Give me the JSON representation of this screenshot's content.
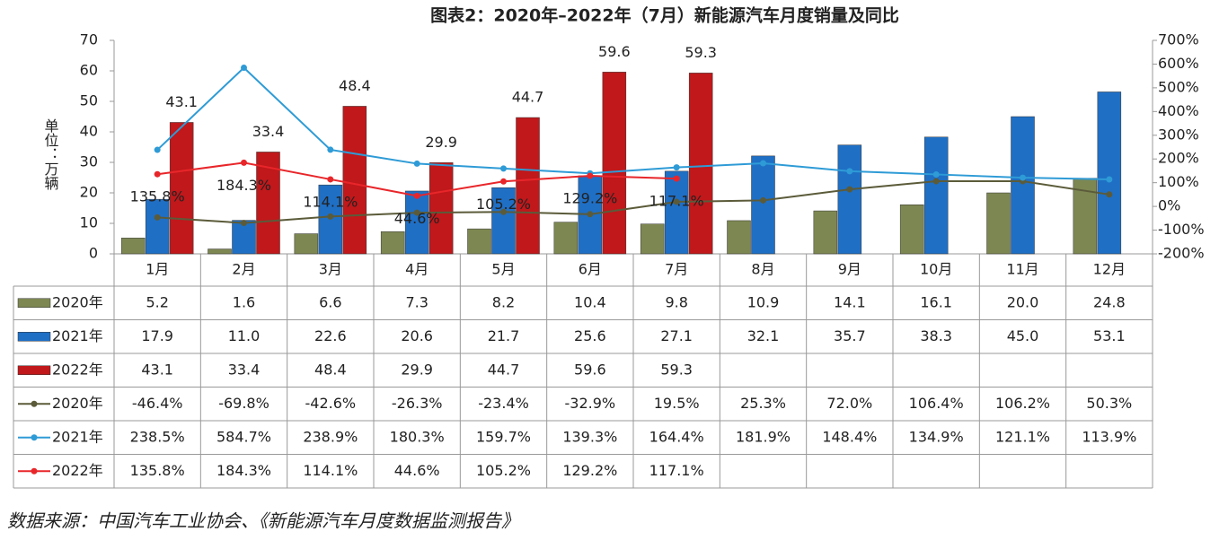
{
  "chart_data": {
    "type": "bar",
    "title": "图表2：2020年–2022年（7月）新能源汽车月度销量及同比",
    "y_label": "单位：万辆",
    "source": "数据来源：中国汽车工业协会、《新能源汽车月度数据监测报告》",
    "categories": [
      "1月",
      "2月",
      "3月",
      "4月",
      "5月",
      "6月",
      "7月",
      "8月",
      "9月",
      "10月",
      "11月",
      "12月"
    ],
    "ylim": [
      0,
      70
    ],
    "yticks": [
      0,
      10,
      20,
      30,
      40,
      50,
      60,
      70
    ],
    "y2lim": [
      -200,
      700
    ],
    "y2ticks": [
      {
        "value": -200,
        "label": "-200%"
      },
      {
        "value": -100,
        "label": "-100%"
      },
      {
        "value": 0,
        "label": "0%"
      },
      {
        "value": 100,
        "label": "100%"
      },
      {
        "value": 200,
        "label": "200%"
      },
      {
        "value": 300,
        "label": "300%"
      },
      {
        "value": 400,
        "label": "400%"
      },
      {
        "value": 500,
        "label": "500%"
      },
      {
        "value": 600,
        "label": "600%"
      },
      {
        "value": 700,
        "label": "700%"
      }
    ],
    "series": [
      {
        "name": "2020年",
        "kind": "bar",
        "color": "#7d8752",
        "values": [
          5.2,
          1.6,
          6.6,
          7.3,
          8.2,
          10.4,
          9.8,
          10.9,
          14.1,
          16.1,
          20.0,
          24.8
        ],
        "value_labels": [
          "5.2",
          "1.6",
          "6.6",
          "7.3",
          "8.2",
          "10.4",
          "9.8",
          "10.9",
          "14.1",
          "16.1",
          "20.0",
          "24.8"
        ]
      },
      {
        "name": "2021年",
        "kind": "bar",
        "color": "#1f6fc5",
        "values": [
          17.9,
          11.0,
          22.6,
          20.6,
          21.7,
          25.6,
          27.1,
          32.1,
          35.7,
          38.3,
          45.0,
          53.1
        ],
        "value_labels": [
          "17.9",
          "11.0",
          "22.6",
          "20.6",
          "21.7",
          "25.6",
          "27.1",
          "32.1",
          "35.7",
          "38.3",
          "45.0",
          "53.1"
        ]
      },
      {
        "name": "2022年",
        "kind": "bar",
        "color": "#c0181b",
        "show_labels": true,
        "values": [
          43.1,
          33.4,
          48.4,
          29.9,
          44.7,
          59.6,
          59.3,
          null,
          null,
          null,
          null,
          null
        ],
        "value_labels": [
          "43.1",
          "33.4",
          "48.4",
          "29.9",
          "44.7",
          "59.6",
          "59.3",
          null,
          null,
          null,
          null,
          null
        ]
      },
      {
        "name": "2020年",
        "kind": "line",
        "axis": "y2",
        "color": "#5b5b3a",
        "values": [
          -46.4,
          -69.8,
          -42.6,
          -26.3,
          -23.4,
          -32.9,
          19.5,
          25.3,
          72.0,
          106.4,
          106.2,
          50.3
        ],
        "value_labels": [
          "-46.4%",
          "-69.8%",
          "-42.6%",
          "-26.3%",
          "-23.4%",
          "-32.9%",
          "19.5%",
          "25.3%",
          "72.0%",
          "106.4%",
          "106.2%",
          "50.3%"
        ]
      },
      {
        "name": "2021年",
        "kind": "line",
        "axis": "y2",
        "color": "#2e9bd6",
        "values": [
          238.5,
          584.7,
          238.9,
          180.3,
          159.7,
          139.3,
          164.4,
          181.9,
          148.4,
          134.9,
          121.1,
          113.9
        ],
        "value_labels": [
          "238.5%",
          "584.7%",
          "238.9%",
          "180.3%",
          "159.7%",
          "139.3%",
          "164.4%",
          "181.9%",
          "148.4%",
          "134.9%",
          "121.1%",
          "113.9%"
        ]
      },
      {
        "name": "2022年",
        "kind": "line",
        "axis": "y2",
        "color": "#e8262a",
        "show_labels": true,
        "values": [
          135.8,
          184.3,
          114.1,
          44.6,
          105.2,
          129.2,
          117.1,
          null,
          null,
          null,
          null,
          null
        ],
        "value_labels": [
          "135.8%",
          "184.3%",
          "114.1%",
          "44.6%",
          "105.2%",
          "129.2%",
          "117.1%",
          null,
          null,
          null,
          null,
          null
        ]
      }
    ]
  }
}
